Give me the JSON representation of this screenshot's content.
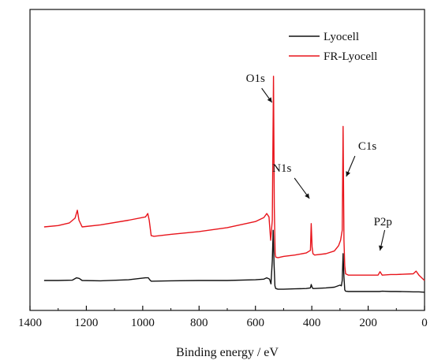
{
  "chart_data": {
    "type": "line",
    "title": "",
    "xlabel": "Binding energy / eV",
    "ylabel": "",
    "xlim": [
      1400,
      0
    ],
    "x_reversed": true,
    "x_ticks": [
      1400,
      1200,
      1000,
      800,
      600,
      400,
      200,
      0
    ],
    "y_ticks_shown": false,
    "grid": false,
    "legend_position": "top-right",
    "series": [
      {
        "name": "Lyocell",
        "color": "#111111",
        "x": [
          1350,
          1300,
          1250,
          1235,
          1225,
          1215,
          1150,
          1050,
          990,
          980,
          975,
          970,
          900,
          800,
          700,
          600,
          570,
          560,
          550,
          545,
          540,
          537,
          534,
          531,
          528,
          520,
          500,
          460,
          420,
          405,
          402,
          399,
          396,
          390,
          350,
          320,
          300,
          295,
          292,
          289,
          286,
          283,
          280,
          270,
          200,
          160,
          150,
          120,
          100,
          40,
          20,
          0
        ],
        "values": [
          0.2,
          0.2,
          0.205,
          0.24,
          0.23,
          0.2,
          0.195,
          0.21,
          0.24,
          0.24,
          0.21,
          0.19,
          0.195,
          0.2,
          0.2,
          0.21,
          0.22,
          0.24,
          0.22,
          0.15,
          0.5,
          0.95,
          0.45,
          0.12,
          0.08,
          0.07,
          0.07,
          0.075,
          0.08,
          0.09,
          0.14,
          0.1,
          0.08,
          0.08,
          0.09,
          0.1,
          0.13,
          0.12,
          0.2,
          0.6,
          0.25,
          0.06,
          0.04,
          0.035,
          0.035,
          0.035,
          0.04,
          0.035,
          0.035,
          0.03,
          0.03,
          0.025
        ]
      },
      {
        "name": "FR-Lyocell",
        "color": "#e8141b",
        "x": [
          1350,
          1300,
          1260,
          1240,
          1232,
          1226,
          1215,
          1150,
          1050,
          990,
          982,
          977,
          970,
          960,
          900,
          800,
          700,
          600,
          570,
          560,
          552,
          546,
          540,
          536,
          533,
          530,
          528,
          520,
          500,
          460,
          420,
          405,
          402,
          399,
          396,
          390,
          350,
          320,
          305,
          298,
          292,
          289,
          286,
          283,
          280,
          270,
          200,
          165,
          158,
          150,
          120,
          100,
          40,
          30,
          20,
          0
        ],
        "values": [
          1.0,
          1.02,
          1.06,
          1.13,
          1.25,
          1.1,
          1.0,
          1.03,
          1.1,
          1.15,
          1.2,
          1.1,
          0.87,
          0.86,
          0.89,
          0.93,
          0.99,
          1.08,
          1.14,
          1.2,
          1.15,
          0.8,
          1.1,
          3.25,
          1.3,
          0.6,
          0.55,
          0.54,
          0.56,
          0.58,
          0.61,
          0.65,
          1.05,
          0.7,
          0.6,
          0.58,
          0.6,
          0.64,
          0.72,
          0.8,
          0.95,
          2.5,
          0.8,
          0.42,
          0.3,
          0.28,
          0.28,
          0.28,
          0.33,
          0.28,
          0.29,
          0.29,
          0.3,
          0.34,
          0.28,
          0.2
        ]
      }
    ],
    "annotations": [
      {
        "text": "O1s",
        "x": 533
      },
      {
        "text": "N1s",
        "x": 400
      },
      {
        "text": "C1s",
        "x": 286
      },
      {
        "text": "P2p",
        "x": 130
      }
    ]
  }
}
